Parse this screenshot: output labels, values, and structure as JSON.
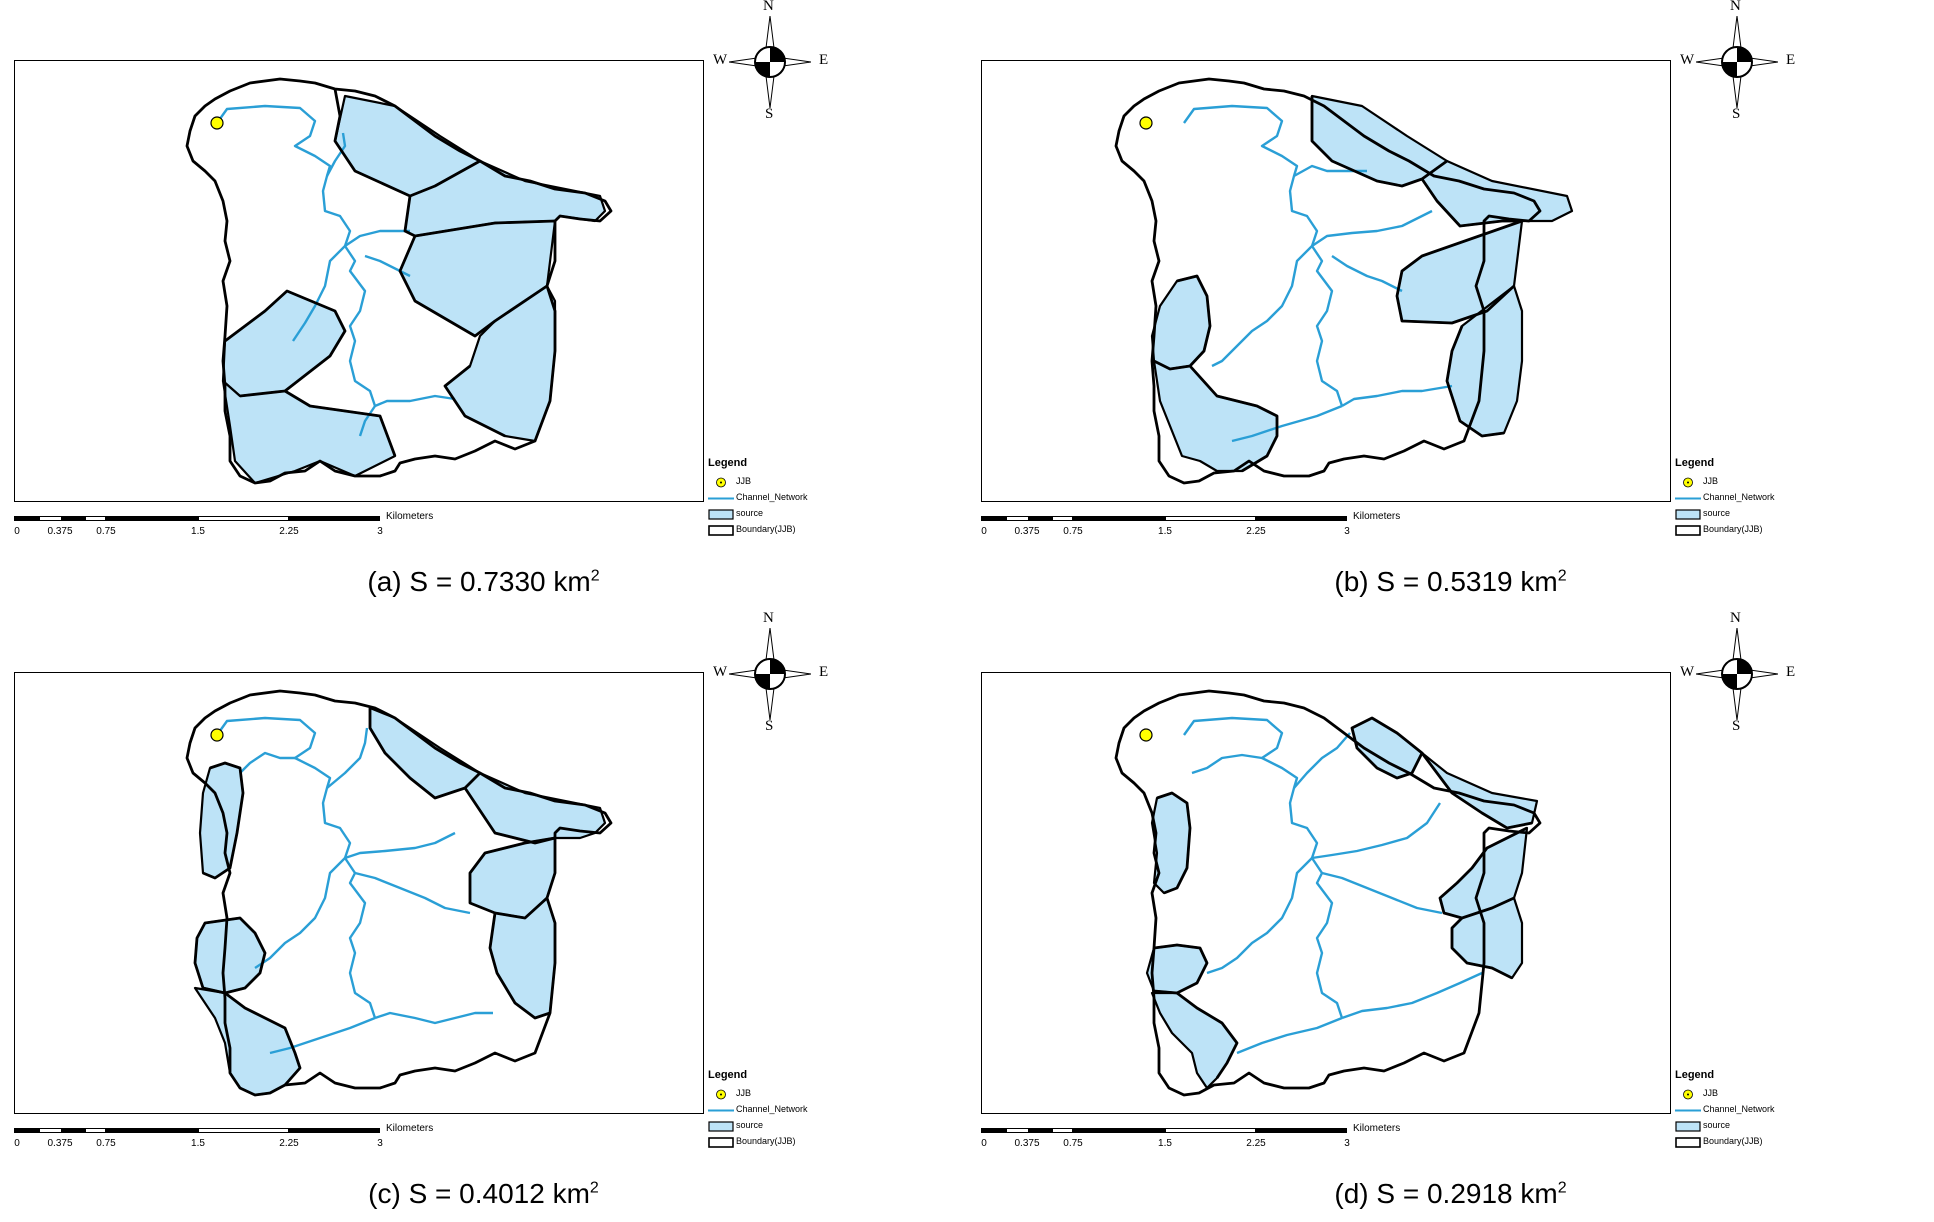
{
  "compass": {
    "n": "N",
    "s": "S",
    "w": "W",
    "e": "E"
  },
  "legend": {
    "title": "Legend",
    "items": [
      "JJB",
      "Channel_Network",
      "source",
      "Boundary(JJB)"
    ]
  },
  "scalebar": {
    "ticks": [
      "0",
      "0.375",
      "0.75",
      "1.5",
      "2.25",
      "3"
    ],
    "unit": "Kilometers"
  },
  "colors": {
    "source_fill": "#bde3f7",
    "channel": "#2a9fd6",
    "boundary": "#000000",
    "outlet": "#ffff00"
  },
  "panels": [
    {
      "id": "a",
      "label": "(a) S = 0.7330 km",
      "sup": "2"
    },
    {
      "id": "b",
      "label": "(b) S = 0.5319 km",
      "sup": "2"
    },
    {
      "id": "c",
      "label": "(c) S = 0.4012 km",
      "sup": "2"
    },
    {
      "id": "d",
      "label": "(d) S = 0.2918 km",
      "sup": "2"
    }
  ]
}
